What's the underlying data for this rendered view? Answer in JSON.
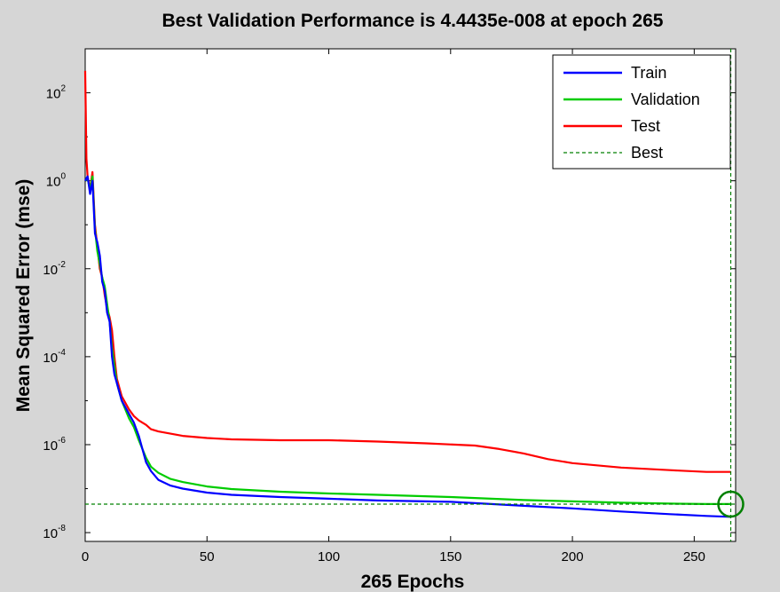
{
  "chart_data": {
    "type": "line",
    "title": "Best Validation Performance is 4.4435e-008 at epoch 265",
    "xlabel": "265 Epochs",
    "ylabel": "Mean Squared Error  (mse)",
    "yscale": "log",
    "xlim": [
      0,
      267
    ],
    "ylim_exponent": [
      -8.2,
      3
    ],
    "x_ticks": [
      "0",
      "50",
      "100",
      "150",
      "200",
      "250"
    ],
    "y_ticks": [
      {
        "base": "10",
        "exp": "2",
        "value": 2
      },
      {
        "base": "10",
        "exp": "0",
        "value": 0
      },
      {
        "base": "10",
        "exp": "-2",
        "value": -2
      },
      {
        "base": "10",
        "exp": "-4",
        "value": -4
      },
      {
        "base": "10",
        "exp": "-6",
        "value": -6
      },
      {
        "base": "10",
        "exp": "-8",
        "value": -8
      }
    ],
    "legend": [
      "Train",
      "Validation",
      "Test",
      "Best"
    ],
    "legend_position": "top-right",
    "series": [
      {
        "name": "Train",
        "color": "#0000ff",
        "x": [
          0,
          1,
          2,
          3,
          4,
          5,
          6,
          7,
          8,
          9,
          10,
          11,
          12,
          13,
          14,
          15,
          18,
          20,
          22,
          25,
          27,
          30,
          35,
          40,
          50,
          60,
          80,
          100,
          120,
          150,
          180,
          200,
          220,
          240,
          255,
          265
        ],
        "log10_mse": [
          0,
          0.1,
          -0.3,
          0,
          -1.2,
          -1.4,
          -1.7,
          -2.3,
          -2.5,
          -3,
          -3.2,
          -4,
          -4.4,
          -4.6,
          -4.8,
          -5.0,
          -5.3,
          -5.5,
          -5.8,
          -6.4,
          -6.6,
          -6.8,
          -6.93,
          -7.0,
          -7.09,
          -7.14,
          -7.19,
          -7.23,
          -7.27,
          -7.3,
          -7.39,
          -7.45,
          -7.52,
          -7.58,
          -7.62,
          -7.64
        ]
      },
      {
        "name": "Validation",
        "color": "#00cc00",
        "x": [
          0,
          1,
          2,
          3,
          4,
          5,
          6,
          7,
          8,
          9,
          10,
          11,
          12,
          13,
          14,
          15,
          18,
          20,
          22,
          25,
          27,
          30,
          35,
          40,
          50,
          60,
          80,
          100,
          120,
          150,
          180,
          200,
          220,
          240,
          255,
          265
        ],
        "log10_mse": [
          0,
          0.05,
          -0.2,
          0.1,
          -1.1,
          -1.6,
          -1.9,
          -2.2,
          -2.4,
          -2.8,
          -3.2,
          -3.8,
          -4.2,
          -4.6,
          -4.8,
          -5.0,
          -5.4,
          -5.6,
          -5.9,
          -6.3,
          -6.5,
          -6.64,
          -6.78,
          -6.85,
          -6.95,
          -7.01,
          -7.07,
          -7.11,
          -7.14,
          -7.19,
          -7.26,
          -7.29,
          -7.32,
          -7.34,
          -7.35,
          -7.35
        ]
      },
      {
        "name": "Test",
        "color": "#ff0000",
        "x": [
          0,
          0.5,
          1,
          2,
          3,
          4,
          5,
          6,
          7,
          8,
          9,
          10,
          11,
          12,
          13,
          14,
          15,
          18,
          20,
          22,
          25,
          27,
          30,
          40,
          50,
          60,
          80,
          100,
          120,
          140,
          160,
          170,
          180,
          190,
          200,
          220,
          240,
          255,
          265
        ],
        "log10_mse": [
          2.5,
          0.5,
          0.1,
          -0.2,
          0.2,
          -1.0,
          -1.5,
          -2.0,
          -2.2,
          -2.6,
          -2.9,
          -3.1,
          -3.4,
          -4.0,
          -4.5,
          -4.7,
          -4.9,
          -5.2,
          -5.35,
          -5.45,
          -5.55,
          -5.65,
          -5.7,
          -5.8,
          -5.85,
          -5.88,
          -5.9,
          -5.9,
          -5.93,
          -5.97,
          -6.02,
          -6.1,
          -6.2,
          -6.33,
          -6.42,
          -6.52,
          -6.58,
          -6.62,
          -6.62
        ]
      },
      {
        "name": "Best",
        "color": "#008000",
        "style": "dashed",
        "best_epoch": 265,
        "best_value": 4.4435e-08
      }
    ],
    "colors": {
      "train": "#0000ff",
      "validation": "#00cc00",
      "test": "#ff0000",
      "best": "#008000"
    }
  }
}
